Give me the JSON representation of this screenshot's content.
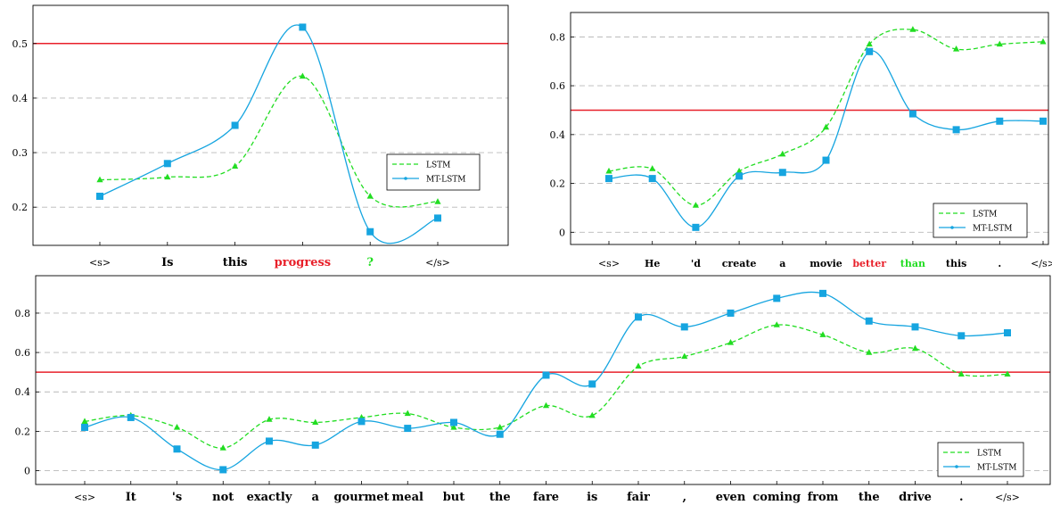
{
  "chart_data": [
    {
      "type": "line",
      "categories": [
        "<s>",
        "Is",
        "this",
        "progress",
        "?",
        "</s>"
      ],
      "category_colors": [
        "#000000",
        "#000000",
        "#000000",
        "#e8202a",
        "#22dd22",
        "#000000"
      ],
      "series": [
        {
          "name": "LSTM",
          "color": "#22dd22",
          "style": "dashed",
          "marker": "triangle",
          "values": [
            0.25,
            0.255,
            0.275,
            0.44,
            0.22,
            0.21
          ]
        },
        {
          "name": "MT-LSTM",
          "color": "#16a5e0",
          "style": "solid",
          "marker": "square",
          "values": [
            0.22,
            0.28,
            0.35,
            0.53,
            0.155,
            0.18
          ]
        }
      ],
      "threshold": 0.5,
      "threshold_color": "#e8202a",
      "ylim": [
        0.13,
        0.57
      ],
      "yticks": [
        0.2,
        0.3,
        0.4,
        0.5
      ],
      "ytick_labels": [
        "0.2",
        "0.3",
        "0.4",
        "0.5"
      ],
      "grid": true,
      "legend_position": "right"
    },
    {
      "type": "line",
      "categories": [
        "<s>",
        "He",
        "'d",
        "create",
        "a",
        "movie",
        "better",
        "than",
        "this",
        ".",
        "</s>"
      ],
      "category_colors": [
        "#000000",
        "#000000",
        "#000000",
        "#000000",
        "#000000",
        "#000000",
        "#e8202a",
        "#22dd22",
        "#000000",
        "#000000",
        "#000000"
      ],
      "series": [
        {
          "name": "LSTM",
          "color": "#22dd22",
          "style": "dashed",
          "marker": "triangle",
          "values": [
            0.25,
            0.26,
            0.11,
            0.25,
            0.32,
            0.43,
            0.77,
            0.83,
            0.75,
            0.77,
            0.78
          ]
        },
        {
          "name": "MT-LSTM",
          "color": "#16a5e0",
          "style": "solid",
          "marker": "square",
          "values": [
            0.22,
            0.22,
            0.02,
            0.23,
            0.245,
            0.295,
            0.74,
            0.485,
            0.42,
            0.455,
            0.455
          ]
        }
      ],
      "threshold": 0.5,
      "threshold_color": "#e8202a",
      "ylim": [
        -0.05,
        0.9
      ],
      "yticks": [
        0,
        0.2,
        0.4,
        0.6,
        0.8
      ],
      "ytick_labels": [
        "0",
        "0.2",
        "0.4",
        "0.6",
        "0.8"
      ],
      "grid": true,
      "legend_position": "bottom-right"
    },
    {
      "type": "line",
      "categories": [
        "<s>",
        "It",
        "'s",
        "not",
        "exactly",
        "a",
        "gourmet",
        "meal",
        "but",
        "the",
        "fare",
        "is",
        "fair",
        ",",
        "even",
        "coming",
        "from",
        "the",
        "drive",
        ".",
        "</s>"
      ],
      "category_colors": [
        "#000000",
        "#000000",
        "#000000",
        "#000000",
        "#000000",
        "#000000",
        "#000000",
        "#000000",
        "#000000",
        "#000000",
        "#000000",
        "#000000",
        "#000000",
        "#000000",
        "#000000",
        "#000000",
        "#000000",
        "#000000",
        "#000000",
        "#000000",
        "#000000"
      ],
      "series": [
        {
          "name": "LSTM",
          "color": "#22dd22",
          "style": "dashed",
          "marker": "triangle",
          "values": [
            0.25,
            0.28,
            0.22,
            0.115,
            0.26,
            0.245,
            0.27,
            0.29,
            0.22,
            0.22,
            0.33,
            0.28,
            0.53,
            0.58,
            0.65,
            0.74,
            0.69,
            0.6,
            0.62,
            0.49,
            0.49
          ]
        },
        {
          "name": "MT-LSTM",
          "color": "#16a5e0",
          "style": "solid",
          "marker": "square",
          "values": [
            0.22,
            0.27,
            0.11,
            0.005,
            0.15,
            0.13,
            0.25,
            0.215,
            0.245,
            0.185,
            0.485,
            0.44,
            0.78,
            0.73,
            0.8,
            0.875,
            0.9,
            0.76,
            0.73,
            0.685,
            0.7
          ]
        }
      ],
      "threshold": 0.5,
      "threshold_color": "#e8202a",
      "ylim": [
        -0.07,
        0.99
      ],
      "yticks": [
        0,
        0.2,
        0.4,
        0.6,
        0.8
      ],
      "ytick_labels": [
        "0",
        "0.2",
        "0.4",
        "0.6",
        "0.8"
      ],
      "grid": true,
      "legend_position": "bottom-right"
    }
  ]
}
